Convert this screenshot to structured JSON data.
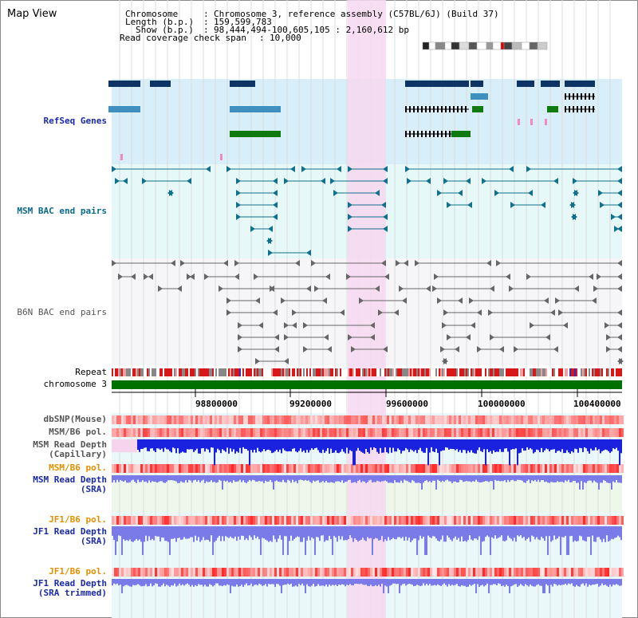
{
  "view_title": "Map View",
  "header": {
    "chromosome_key": "Chromosome",
    "chromosome_value": "Chromosome 3, reference assembly (C57BL/6J) (Build 37)",
    "length_key": "Length (b.p.)",
    "length_value": "159,599,783",
    "show_key": "Show (b.p.)",
    "show_value": "98,444,494-100,605,105 : 2,160,612 bp",
    "coverage_key": "Read coverage check span",
    "coverage_value": "10,000"
  },
  "tracks": {
    "refseq": "RefSeq Genes",
    "msm_bac": "MSM BAC end pairs",
    "b6n_bac": "B6N BAC end pairs",
    "repeat": "Repeat",
    "chromosome": "chromosome 3",
    "dbsnp": "dbSNP(Mouse)",
    "msm_b6_pol_1": "MSM/B6 pol.",
    "msm_depth_cap_1": "MSM Read Depth",
    "msm_depth_cap_2": "(Capillary)",
    "msm_b6_pol_2": "MSM/B6 pol.",
    "msm_depth_sra_1": "MSM Read Depth",
    "msm_depth_sra_2": "(SRA)",
    "jf1_b6_pol_1": "JF1/B6 pol.",
    "jf1_depth_sra_1": "JF1 Read Depth",
    "jf1_depth_sra_2": "(SRA)",
    "jf1_b6_pol_2": "JF1/B6 pol.",
    "jf1_depth_trim_1": "JF1 Read Depth",
    "jf1_depth_trim_2": "(SRA trimmed)"
  },
  "axis_ticks": [
    "98800000",
    "99200000",
    "99600000",
    "100000000",
    "100400000"
  ],
  "colors": {
    "refseq_dark": "#0e3466",
    "refseq_mid": "#3f8fbf",
    "refseq_green": "#0f7a0f",
    "msm_bac": "#11708c",
    "b6n_bac": "#666666",
    "chromosome_bar": "#007000",
    "highlight": "#f7d8f0",
    "depth_blue": "#1a22e0",
    "depth_light": "#7a7ae8"
  }
}
